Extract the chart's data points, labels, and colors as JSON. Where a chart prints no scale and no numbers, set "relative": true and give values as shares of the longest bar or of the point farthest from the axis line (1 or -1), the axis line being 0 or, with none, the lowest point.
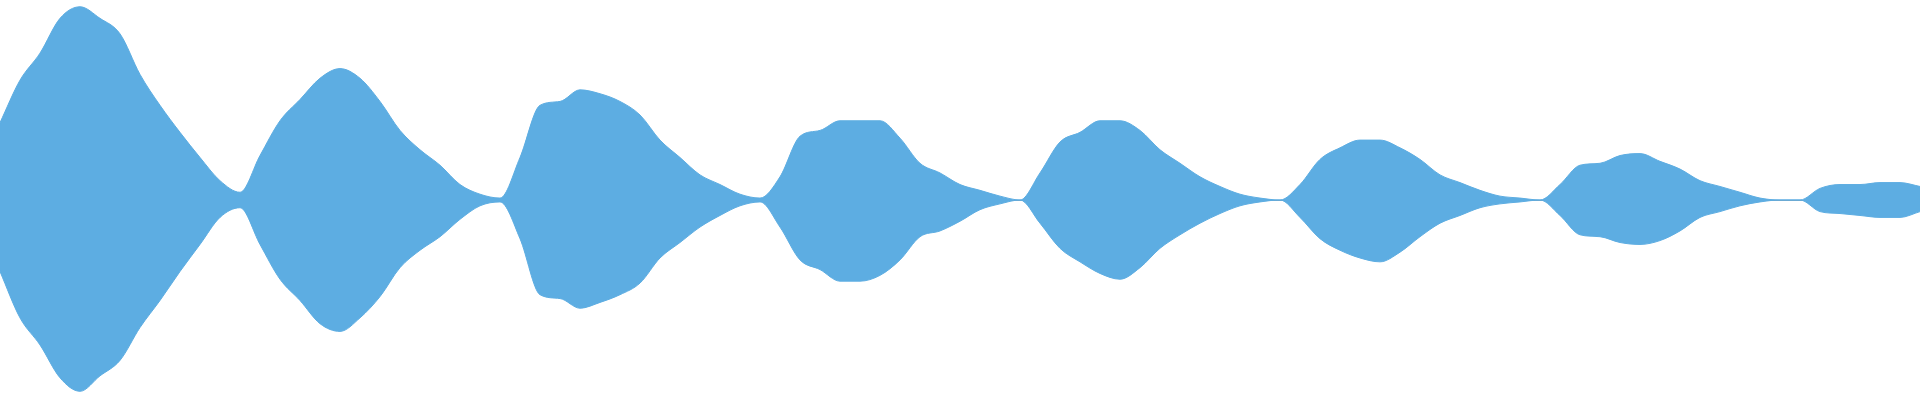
{
  "chart_data": {
    "type": "area",
    "relative": true,
    "categories": [
      null,
      null,
      null,
      null,
      null,
      null,
      null,
      null,
      null,
      null,
      null,
      null,
      null,
      null,
      null,
      null,
      null,
      null,
      null,
      null,
      null,
      null,
      null,
      null,
      null,
      null,
      null,
      null,
      null,
      null,
      null,
      null,
      null,
      null,
      null,
      null,
      null,
      null,
      null,
      null,
      null,
      null,
      null,
      null,
      null,
      null,
      null,
      null,
      null,
      null,
      null,
      null,
      null,
      null,
      null,
      null,
      null,
      null,
      null,
      null,
      null,
      null,
      null,
      null,
      null,
      null,
      null,
      null,
      null,
      null,
      null,
      null,
      null,
      null,
      null,
      null,
      null,
      null,
      null,
      null,
      null,
      null,
      null,
      null,
      null,
      null,
      null,
      null,
      null,
      null,
      null,
      null,
      null,
      null,
      null,
      null,
      null
    ],
    "series": [
      {
        "color": "#5dade2",
        "values": [
          0.4,
          0.62,
          0.76,
          0.94,
          1,
          0.94,
          0.86,
          0.65,
          0.49,
          0.35,
          0.22,
          0.1,
          0.04,
          0.23,
          0.41,
          0.52,
          0.63,
          0.68,
          0.63,
          0.51,
          0.36,
          0.26,
          0.18,
          0.08,
          0.03,
          0.01,
          0.22,
          0.49,
          0.51,
          0.57,
          0.55,
          0.51,
          0.44,
          0.31,
          0.22,
          0.13,
          0.08,
          0.03,
          0.01,
          0.12,
          0.33,
          0.36,
          0.41,
          0.41,
          0.41,
          0.32,
          0.19,
          0.14,
          0.08,
          0.05,
          0.02,
          0,
          0.14,
          0.3,
          0.35,
          0.41,
          0.41,
          0.36,
          0.26,
          0.19,
          0.12,
          0.07,
          0.03,
          0.01,
          0,
          0.08,
          0.21,
          0.27,
          0.31,
          0.31,
          0.27,
          0.21,
          0.13,
          0.09,
          0.05,
          0.02,
          0.01,
          0,
          0.08,
          0.18,
          0.19,
          0.23,
          0.24,
          0.2,
          0.16,
          0.1,
          0.07,
          0.04,
          0.01,
          0,
          0,
          0.06,
          0.08,
          0.08,
          0.09,
          0.09,
          0.07
        ]
      },
      {
        "color": "#5dade2",
        "values": [
          -0.37,
          -0.61,
          -0.75,
          -0.92,
          -0.99,
          -0.91,
          -0.83,
          -0.66,
          -0.52,
          -0.37,
          -0.23,
          -0.09,
          -0.04,
          -0.23,
          -0.41,
          -0.52,
          -0.64,
          -0.68,
          -0.61,
          -0.5,
          -0.35,
          -0.26,
          -0.19,
          -0.1,
          -0.03,
          -0.01,
          -0.2,
          -0.49,
          -0.51,
          -0.56,
          -0.53,
          -0.49,
          -0.43,
          -0.3,
          -0.22,
          -0.14,
          -0.08,
          -0.03,
          -0.01,
          -0.14,
          -0.31,
          -0.36,
          -0.42,
          -0.42,
          -0.39,
          -0.31,
          -0.19,
          -0.16,
          -0.11,
          -0.05,
          -0.02,
          0,
          -0.12,
          -0.25,
          -0.32,
          -0.38,
          -0.41,
          -0.35,
          -0.25,
          -0.18,
          -0.12,
          -0.07,
          -0.03,
          -0.01,
          0,
          -0.09,
          -0.2,
          -0.26,
          -0.3,
          -0.32,
          -0.27,
          -0.19,
          -0.12,
          -0.08,
          -0.04,
          -0.02,
          -0.01,
          0,
          -0.08,
          -0.18,
          -0.19,
          -0.22,
          -0.23,
          -0.21,
          -0.16,
          -0.09,
          -0.06,
          -0.03,
          -0.01,
          0,
          0,
          -0.06,
          -0.07,
          -0.08,
          -0.09,
          -0.09,
          -0.06
        ]
      }
    ]
  }
}
